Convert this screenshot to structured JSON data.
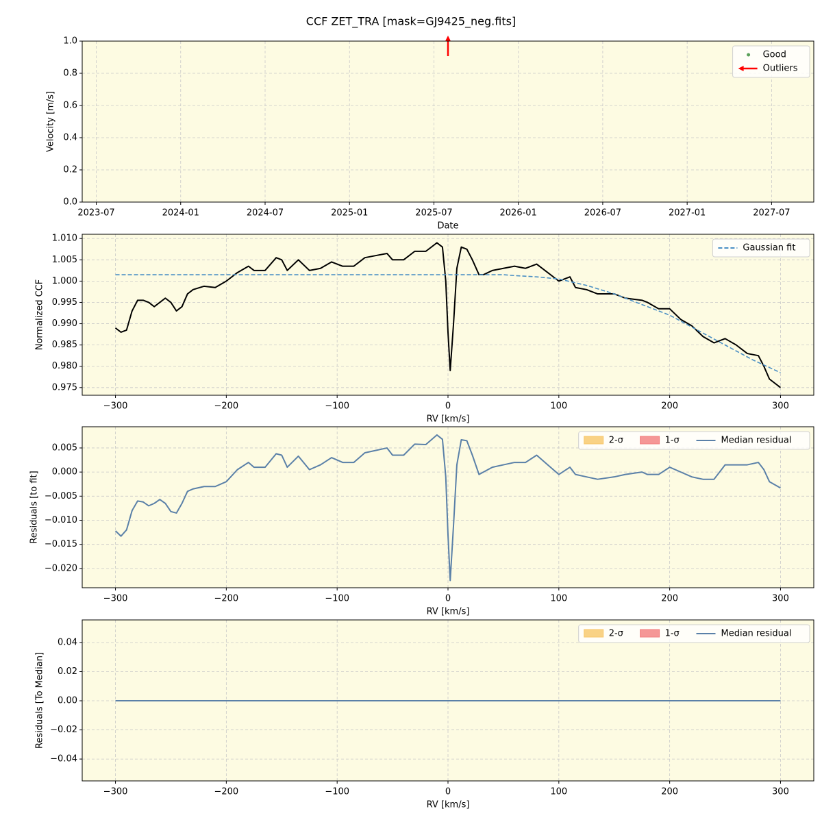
{
  "title": "CCF ZET_TRA [mask=GJ9425_neg.fits]",
  "chart_data": [
    {
      "type": "scatter",
      "xlabel": "Date",
      "ylabel": "Velocity [m/s]",
      "xlim": [
        "2023-06",
        "2027-10"
      ],
      "xticks": [
        "2023-07",
        "2024-01",
        "2024-07",
        "2025-01",
        "2025-07",
        "2026-01",
        "2026-07",
        "2027-01",
        "2027-07"
      ],
      "ylim": [
        0,
        1
      ],
      "yticks": [
        {
          "value": 0,
          "label": "0.0"
        },
        0.2,
        0.4,
        0.6,
        0.8,
        {
          "value": 1,
          "label": "1.0"
        }
      ],
      "grid": true,
      "legend": "upper right",
      "background": "#fdfbe2",
      "series": [
        {
          "name": "Good",
          "color": "#5aa05a",
          "marker": "dot",
          "x": [],
          "values": []
        },
        {
          "name": "Outliers",
          "color": "#ff0000",
          "marker": "arrow",
          "x": [
            "2025-08"
          ],
          "values": [
            null
          ]
        }
      ]
    },
    {
      "type": "line",
      "xlabel": "RV [km/s]",
      "ylabel": "Normalized CCF",
      "xlim": [
        -330,
        330
      ],
      "xticks": [
        {
          "value": -300,
          "label": "−300"
        },
        {
          "value": -200,
          "label": "−200"
        },
        {
          "value": -100,
          "label": "−100"
        },
        0,
        100,
        200,
        300
      ],
      "ylim": [
        0.9732,
        1.011
      ],
      "yticks": [
        0.975,
        {
          "value": 0.98,
          "label": "0.980"
        },
        0.985,
        {
          "value": 0.99,
          "label": "0.990"
        },
        0.995,
        {
          "value": 1,
          "label": "1.000"
        },
        1.005,
        {
          "value": 1.01,
          "label": "1.010"
        }
      ],
      "grid": true,
      "legend": "upper right",
      "background": "#fdfbe2",
      "series": [
        {
          "color": "#000000",
          "linestyle": "solid",
          "x": [
            -300,
            -295,
            -290,
            -285,
            -280,
            -275,
            -270,
            -265,
            -260,
            -255,
            -250,
            -245,
            -240,
            -235,
            -230,
            -220,
            -210,
            -200,
            -190,
            -180,
            -175,
            -165,
            -155,
            -150,
            -145,
            -135,
            -125,
            -115,
            -105,
            -95,
            -85,
            -75,
            -65,
            -55,
            -50,
            -40,
            -30,
            -20,
            -10,
            -5,
            -2,
            0,
            2,
            5,
            8,
            12,
            17,
            22,
            28,
            32,
            40,
            50,
            60,
            70,
            80,
            90,
            100,
            110,
            115,
            125,
            135,
            150,
            160,
            175,
            180,
            190,
            200,
            210,
            220,
            230,
            240,
            250,
            260,
            270,
            280,
            285,
            290,
            300
          ],
          "values": [
            0.989,
            0.988,
            0.9885,
            0.993,
            0.9955,
            0.9955,
            0.995,
            0.994,
            0.995,
            0.996,
            0.995,
            0.993,
            0.994,
            0.997,
            0.998,
            0.9988,
            0.9985,
            1.0,
            1.002,
            1.0035,
            1.0025,
            1.0025,
            1.0055,
            1.005,
            1.0025,
            1.005,
            1.0025,
            1.003,
            1.0045,
            1.0035,
            1.0035,
            1.0055,
            1.006,
            1.0065,
            1.005,
            1.005,
            1.007,
            1.007,
            1.009,
            1.008,
            1.0,
            0.988,
            0.979,
            0.99,
            1.003,
            1.008,
            1.0075,
            1.005,
            1.0015,
            1.0015,
            1.0025,
            1.003,
            1.0035,
            1.003,
            1.004,
            1.002,
            1.0,
            1.001,
            0.9985,
            0.998,
            0.997,
            0.997,
            0.996,
            0.9955,
            0.995,
            0.9935,
            0.9935,
            0.991,
            0.9895,
            0.987,
            0.9855,
            0.9865,
            0.985,
            0.983,
            0.9825,
            0.98,
            0.977,
            0.975
          ]
        },
        {
          "name": "Gaussian fit",
          "color": "#4a8fc4",
          "linestyle": "dashed",
          "x": [
            -300,
            -200,
            -100,
            0,
            50,
            60,
            80,
            100,
            125,
            150,
            175,
            200,
            225,
            250,
            275,
            300
          ],
          "values": [
            1.0015,
            1.0015,
            1.0015,
            1.0015,
            1.0015,
            1.0013,
            1.001,
            1.0005,
            0.999,
            0.997,
            0.9945,
            0.992,
            0.9885,
            0.985,
            0.9815,
            0.9785
          ]
        }
      ]
    },
    {
      "type": "line",
      "xlabel": "RV [km/s]",
      "ylabel": "Residuals [to fit]",
      "xlim": [
        -330,
        330
      ],
      "xticks": [
        {
          "value": -300,
          "label": "−300"
        },
        {
          "value": -200,
          "label": "−200"
        },
        {
          "value": -100,
          "label": "−100"
        },
        0,
        100,
        200,
        300
      ],
      "ylim": [
        -0.024,
        0.0094
      ],
      "yticks": [
        {
          "value": -0.02,
          "label": "−0.020"
        },
        {
          "value": -0.015,
          "label": "−0.015"
        },
        {
          "value": -0.01,
          "label": "−0.010"
        },
        {
          "value": -0.005,
          "label": "−0.005"
        },
        {
          "value": 0,
          "label": "0.000"
        },
        0.005
      ],
      "grid": true,
      "legend": "upper right",
      "legend_columns": 3,
      "background": "#fdfbe2",
      "bands": [
        {
          "name": "2-σ",
          "color": "#f7c768"
        },
        {
          "name": "1-σ",
          "color": "#f27d7d"
        }
      ],
      "series": [
        {
          "name": "Median residual",
          "color": "#5a80a8",
          "linestyle": "solid",
          "x": [
            -300,
            -295,
            -290,
            -285,
            -280,
            -275,
            -270,
            -265,
            -260,
            -255,
            -250,
            -245,
            -240,
            -235,
            -230,
            -220,
            -210,
            -200,
            -190,
            -180,
            -175,
            -165,
            -155,
            -150,
            -145,
            -135,
            -125,
            -115,
            -105,
            -95,
            -85,
            -75,
            -65,
            -55,
            -50,
            -40,
            -30,
            -20,
            -10,
            -5,
            -2,
            0,
            2,
            5,
            8,
            12,
            17,
            22,
            28,
            32,
            40,
            50,
            60,
            70,
            80,
            90,
            100,
            110,
            115,
            125,
            135,
            150,
            160,
            175,
            180,
            190,
            200,
            210,
            220,
            230,
            240,
            250,
            260,
            270,
            280,
            285,
            290,
            300
          ],
          "values": [
            -0.0122,
            -0.0133,
            -0.012,
            -0.008,
            -0.006,
            -0.0062,
            -0.007,
            -0.0065,
            -0.0057,
            -0.0065,
            -0.0082,
            -0.0085,
            -0.0065,
            -0.004,
            -0.0035,
            -0.003,
            -0.003,
            -0.002,
            0.0005,
            0.002,
            0.001,
            0.001,
            0.0038,
            0.0035,
            0.001,
            0.0033,
            0.0005,
            0.0015,
            0.003,
            0.002,
            0.002,
            0.004,
            0.0045,
            0.005,
            0.0035,
            0.0035,
            0.0058,
            0.0057,
            0.0077,
            0.0068,
            -0.001,
            -0.013,
            -0.0225,
            -0.011,
            0.0015,
            0.0067,
            0.0065,
            0.0035,
            -0.0005,
            0.0,
            0.001,
            0.0015,
            0.002,
            0.002,
            0.0035,
            0.0015,
            -0.0005,
            0.001,
            -0.0005,
            -0.001,
            -0.0015,
            -0.001,
            -0.0005,
            0.0,
            -0.0005,
            -0.0005,
            0.001,
            0.0,
            -0.001,
            -0.0015,
            -0.0015,
            0.0015,
            0.0015,
            0.0015,
            0.002,
            0.0005,
            -0.002,
            -0.0033
          ]
        }
      ]
    },
    {
      "type": "line",
      "xlabel": "RV [km/s]",
      "ylabel": "Residuals [To Median]",
      "xlim": [
        -330,
        330
      ],
      "xticks": [
        {
          "value": -300,
          "label": "−300"
        },
        {
          "value": -200,
          "label": "−200"
        },
        {
          "value": -100,
          "label": "−100"
        },
        0,
        100,
        200,
        300
      ],
      "ylim": [
        -0.055,
        0.0555
      ],
      "yticks": [
        {
          "value": -0.04,
          "label": "−0.04"
        },
        {
          "value": -0.02,
          "label": "−0.02"
        },
        {
          "value": 0,
          "label": "0.00"
        },
        0.02,
        0.04
      ],
      "grid": true,
      "legend": "upper right",
      "legend_columns": 3,
      "background": "#fdfbe2",
      "bands": [
        {
          "name": "2-σ",
          "color": "#f7c768"
        },
        {
          "name": "1-σ",
          "color": "#f27d7d"
        }
      ],
      "series": [
        {
          "name": "Median residual",
          "color": "#5a80a8",
          "linestyle": "solid",
          "x": [
            -300,
            300
          ],
          "values": [
            0,
            0
          ]
        }
      ]
    }
  ]
}
